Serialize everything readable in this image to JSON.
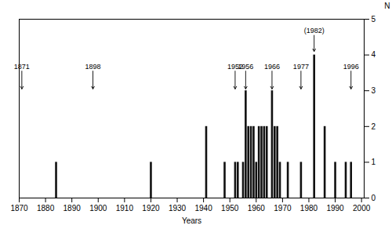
{
  "chart_data": {
    "type": "bar",
    "x": [
      1884,
      1920,
      1941,
      1948,
      1952,
      1953,
      1955,
      1956,
      1957,
      1958,
      1959,
      1960,
      1961,
      1962,
      1963,
      1964,
      1966,
      1967,
      1968,
      1969,
      1972,
      1977,
      1982,
      1986,
      1990,
      1994,
      1996
    ],
    "values": [
      1,
      1,
      2,
      1,
      1,
      1,
      1,
      3,
      2,
      2,
      2,
      1,
      2,
      2,
      2,
      2,
      3,
      2,
      2,
      1,
      1,
      1,
      4,
      2,
      1,
      1,
      1
    ],
    "color": "#111111",
    "xlabel": "Years",
    "ylabel": "N",
    "xlim": [
      1870,
      2001
    ],
    "ylim": [
      0,
      5
    ],
    "xticks": [
      1870,
      1880,
      1890,
      1900,
      1910,
      1920,
      1930,
      1940,
      1950,
      1960,
      1970,
      1980,
      1990,
      2000
    ],
    "yticks": [
      0,
      1,
      2,
      3,
      4,
      5
    ],
    "grid": false,
    "annotations": [
      {
        "x": 1871,
        "y": 3.05,
        "y_start": 3.55,
        "label": "1871"
      },
      {
        "x": 1898,
        "y": 3.05,
        "y_start": 3.55,
        "label": "1898"
      },
      {
        "x": 1952,
        "y": 3.05,
        "y_start": 3.55,
        "label": "1952"
      },
      {
        "x": 1956,
        "y": 3.05,
        "y_start": 3.55,
        "label": "1956"
      },
      {
        "x": 1966,
        "y": 3.05,
        "y_start": 3.55,
        "label": "1966"
      },
      {
        "x": 1977,
        "y": 3.05,
        "y_start": 3.55,
        "label": "1977"
      },
      {
        "x": 1982,
        "y": 4.1,
        "y_start": 4.55,
        "label": "(1982)"
      },
      {
        "x": 1996,
        "y": 3.05,
        "y_start": 3.55,
        "label": "1996"
      }
    ]
  }
}
